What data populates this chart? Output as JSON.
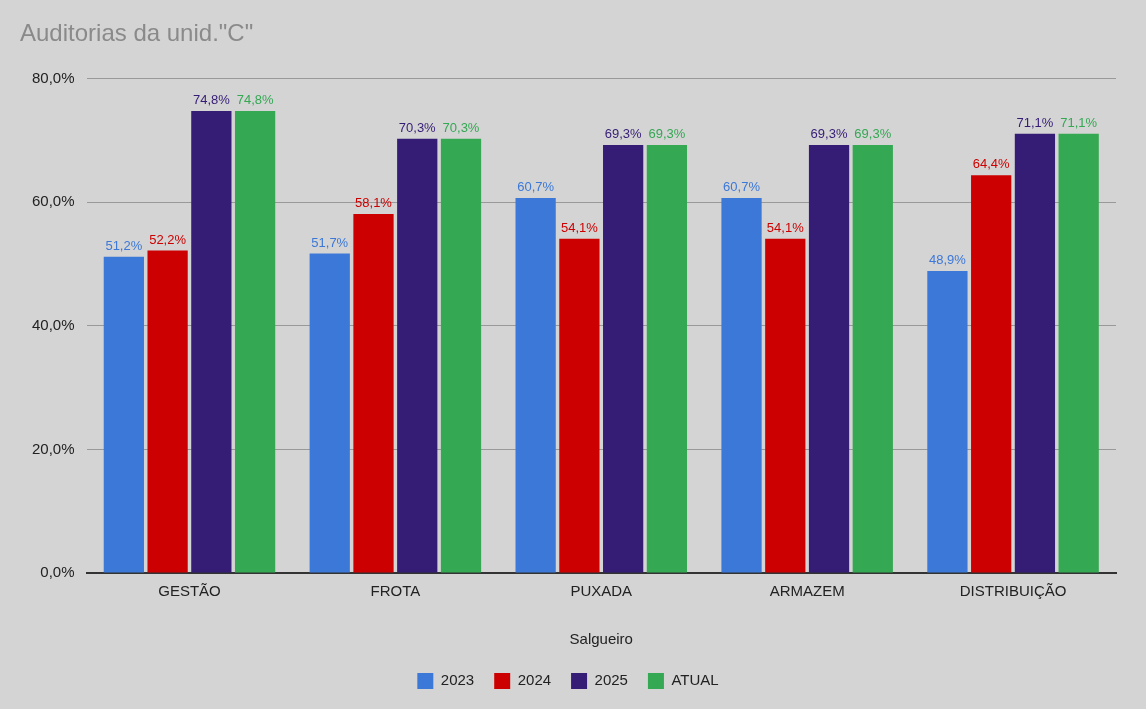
{
  "chart_data": {
    "type": "bar",
    "title": "Auditorias da unid.\"C\"",
    "xlabel": "Salgueiro",
    "categories": [
      "GESTÃO",
      "FROTA",
      "PUXADA",
      "ARMAZEM",
      "DISTRIBUIÇÃO"
    ],
    "series": [
      {
        "name": "2023",
        "color": "#3c78d8",
        "values": [
          51.2,
          51.7,
          60.7,
          60.7,
          48.9
        ],
        "value_labels": [
          "51,2%",
          "51,7%",
          "60,7%",
          "60,7%",
          "48,9%"
        ]
      },
      {
        "name": "2024",
        "color": "#cc0000",
        "values": [
          52.2,
          58.1,
          54.1,
          54.1,
          64.4
        ],
        "value_labels": [
          "52,2%",
          "58,1%",
          "54,1%",
          "54,1%",
          "64,4%"
        ]
      },
      {
        "name": "2025",
        "color": "#351c75",
        "values": [
          74.8,
          70.3,
          69.3,
          69.3,
          71.1
        ],
        "value_labels": [
          "74,8%",
          "70,3%",
          "69,3%",
          "69,3%",
          "71,1%"
        ]
      },
      {
        "name": "ATUAL",
        "color": "#34a853",
        "values": [
          74.8,
          70.3,
          69.3,
          69.3,
          71.1
        ],
        "value_labels": [
          "74,8%",
          "70,3%",
          "69,3%",
          "69,3%",
          "71,1%"
        ]
      }
    ],
    "ylim": [
      0,
      80
    ],
    "yticks": [
      {
        "value": 0,
        "label": "0,0%"
      },
      {
        "value": 20,
        "label": "20,0%"
      },
      {
        "value": 40,
        "label": "40,0%"
      },
      {
        "value": 60,
        "label": "60,0%"
      },
      {
        "value": 80,
        "label": "80,0%"
      }
    ],
    "grid": "y",
    "legend": "bottom"
  }
}
